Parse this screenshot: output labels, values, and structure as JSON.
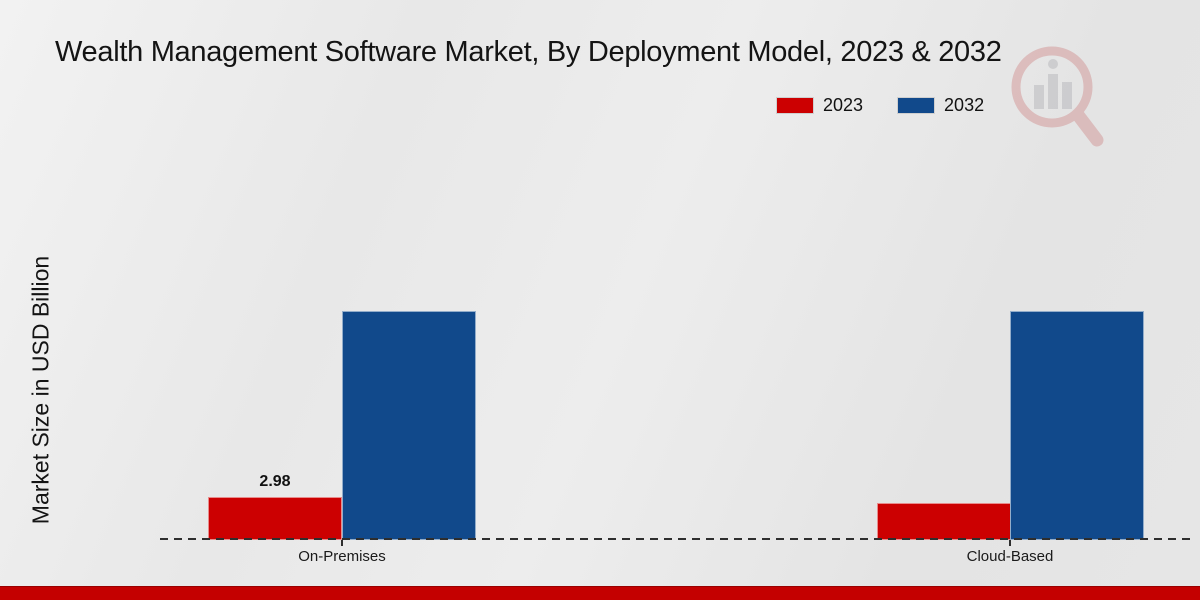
{
  "chart_data": {
    "type": "bar",
    "title": "Wealth Management Software Market, By Deployment Model, 2023 & 2032",
    "ylabel": "Market Size in USD Billion",
    "xlabel": "",
    "categories": [
      "On-Premises",
      "Cloud-Based"
    ],
    "series": [
      {
        "name": "2023",
        "color": "#cc0001",
        "values": [
          2.98,
          2.6
        ]
      },
      {
        "name": "2032",
        "color": "#11498b",
        "values": [
          15.9,
          15.9
        ]
      }
    ],
    "data_labels": [
      "2.98"
    ],
    "ylim": [
      0,
      16.6
    ],
    "grid": false,
    "legend_position": "top-right",
    "baseline_style": "dashed"
  },
  "branding": {
    "watermark_icon": "magnifier-bar-chart-logo",
    "footer_bar_color": "#c40000",
    "watermark_red": "#c87a7a",
    "watermark_gray": "#9a9aa2"
  }
}
